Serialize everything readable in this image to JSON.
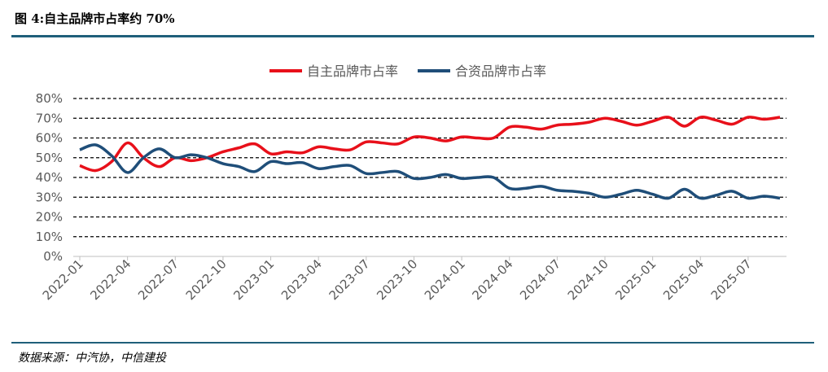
{
  "title": "图 4:自主品牌市占率约 70%",
  "source": "数据来源：中汽协，中信建投",
  "chart_data": {
    "type": "line",
    "yticks": [
      "0%",
      "10%",
      "20%",
      "30%",
      "40%",
      "50%",
      "60%",
      "70%",
      "80%"
    ],
    "ylim": [
      0,
      80
    ],
    "grid": true,
    "legend_position": "top-center",
    "xticklabels": [
      "2022-01",
      "2022-04",
      "2022-07",
      "2022-10",
      "2023-01",
      "2023-04",
      "2023-07",
      "2023-10",
      "2024-01",
      "2024-04",
      "2024-07",
      "2024-10",
      "2025-01",
      "2025-04",
      "2025-07"
    ],
    "x": [
      "2022-01",
      "2022-02",
      "2022-03",
      "2022-04",
      "2022-05",
      "2022-06",
      "2022-07",
      "2022-08",
      "2022-09",
      "2022-10",
      "2022-11",
      "2022-12",
      "2023-01",
      "2023-02",
      "2023-03",
      "2023-04",
      "2023-05",
      "2023-06",
      "2023-07",
      "2023-08",
      "2023-09",
      "2023-10",
      "2023-11",
      "2023-12",
      "2024-01",
      "2024-02",
      "2024-03",
      "2024-04",
      "2024-05",
      "2024-06",
      "2024-07",
      "2024-08",
      "2024-09",
      "2024-10",
      "2024-11",
      "2024-12",
      "2025-01",
      "2025-02",
      "2025-03",
      "2025-04",
      "2025-05",
      "2025-06",
      "2025-07",
      "2025-08",
      "2025-09"
    ],
    "series": [
      {
        "name": "自主品牌市占率",
        "color": "#e8101a",
        "values": [
          46,
          43.5,
          48,
          57.5,
          50,
          45.5,
          50,
          48.5,
          50,
          53,
          55,
          57,
          52,
          53,
          52.5,
          55.5,
          54.5,
          54,
          58,
          57.5,
          57,
          60.5,
          60,
          58.5,
          60.5,
          60,
          60,
          65.5,
          65.5,
          64.5,
          66.5,
          67,
          68,
          70,
          68.5,
          66.5,
          68.5,
          70.5,
          66,
          70.5,
          69,
          67,
          70.5,
          69.5,
          70.5
        ]
      },
      {
        "name": "合资品牌市占率",
        "color": "#1f4e79",
        "values": [
          54,
          56.5,
          51,
          42.5,
          50,
          54.5,
          50,
          51.5,
          50,
          47,
          45.5,
          43,
          48,
          47,
          47.5,
          44.5,
          45.5,
          46,
          42,
          42.5,
          43,
          39.5,
          40,
          41.5,
          39.5,
          40,
          40,
          34.5,
          34.5,
          35.5,
          33.5,
          33,
          32,
          30,
          31.5,
          33.5,
          31.5,
          29.5,
          34,
          29.5,
          31,
          33,
          29.5,
          30.5,
          29.5
        ]
      }
    ]
  }
}
